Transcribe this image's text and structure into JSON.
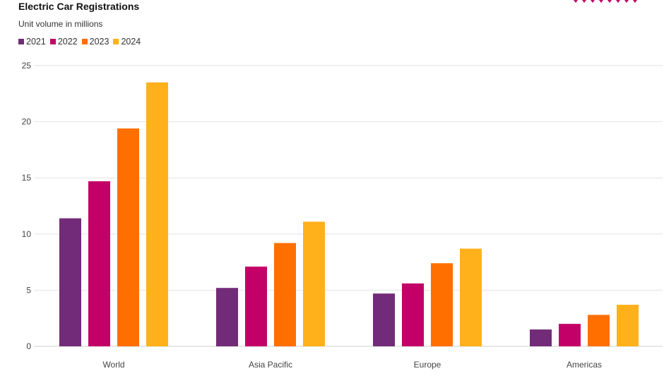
{
  "chart_data": {
    "type": "bar",
    "title": "Electric Car Registrations",
    "subtitle": "Unit volume in millions",
    "categories": [
      "World",
      "Asia Pacific",
      "Europe",
      "Americas"
    ],
    "series": [
      {
        "name": "2021",
        "color": "#722B78",
        "values": [
          11.4,
          5.2,
          4.7,
          1.5
        ]
      },
      {
        "name": "2022",
        "color": "#C20067",
        "values": [
          14.7,
          7.1,
          5.6,
          2.0
        ]
      },
      {
        "name": "2023",
        "color": "#FF6F00",
        "values": [
          19.4,
          9.2,
          7.4,
          2.8
        ]
      },
      {
        "name": "2024",
        "color": "#FFB11C",
        "values": [
          23.5,
          11.1,
          8.7,
          3.7
        ]
      }
    ],
    "ylim": [
      0,
      25
    ],
    "yticks": [
      "0",
      "5",
      "10",
      "15",
      "20",
      "25"
    ],
    "xlabel": "",
    "ylabel": "",
    "legend_position": "top-left",
    "grid": true
  },
  "decoration": {
    "accent_color": "#C20067",
    "marks": 8
  }
}
